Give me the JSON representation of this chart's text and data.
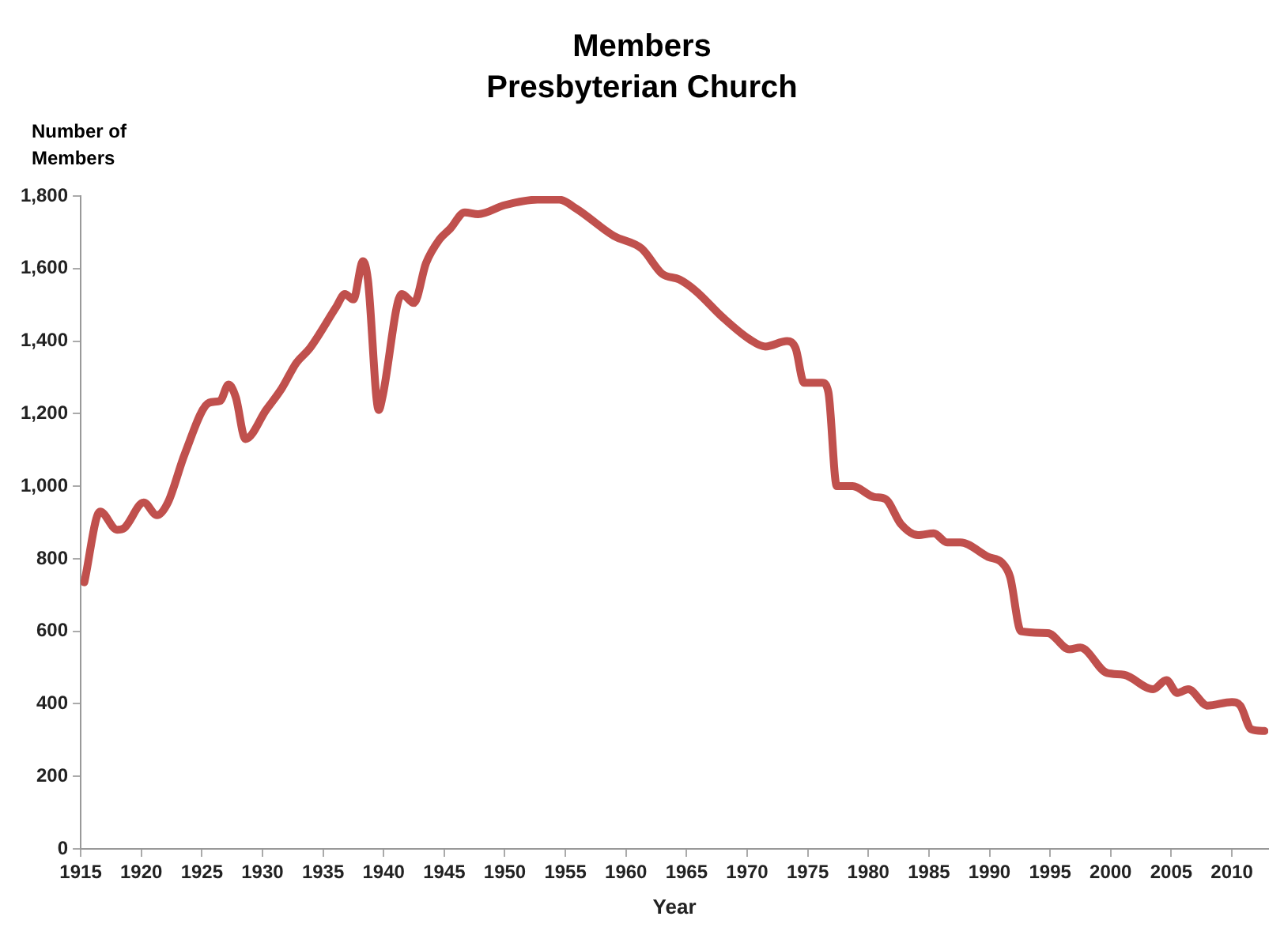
{
  "chart_data": {
    "type": "line",
    "title": "Members",
    "subtitle": "Presbyterian Church",
    "xlabel": "Year",
    "ylabel": "Number of Members",
    "x": [
      1915.3,
      1916.6,
      1918,
      1918.6,
      1920.2,
      1921.3,
      1922.2,
      1923.6,
      1925.6,
      1926.5,
      1927.2,
      1927.8,
      1928.6,
      1930.3,
      1931.6,
      1932.8,
      1933.9,
      1936.1,
      1936.8,
      1937.5,
      1938.3,
      1938.7,
      1939.6,
      1939.9,
      1941.5,
      1942.5,
      1943.5,
      1944.6,
      1945.5,
      1946.7,
      1947.8,
      1950,
      1952.7,
      1954.5,
      1955.9,
      1959,
      1961.3,
      1963,
      1964.4,
      1965.7,
      1968,
      1970.2,
      1971.5,
      1973.3,
      1974,
      1974.7,
      1976.2,
      1976.7,
      1977.4,
      1978.7,
      1980.5,
      1981.4,
      1982.7,
      1984.1,
      1985.4,
      1986.5,
      1987.6,
      1989.9,
      1991,
      1991.7,
      1992.6,
      1994.8,
      1996.6,
      1997.5,
      1999.7,
      2001.1,
      2003.5,
      2004.6,
      2005.5,
      2006.4,
      2008,
      2010,
      2010.7,
      2011.6,
      2012.7
    ],
    "series": [
      {
        "color": "#c0504d",
        "values": [
          735,
          930,
          880,
          885,
          955,
          920,
          955,
          1090,
          1230,
          1235,
          1280,
          1245,
          1130,
          1210,
          1270,
          1340,
          1380,
          1495,
          1530,
          1515,
          1620,
          1570,
          1210,
          1245,
          1530,
          1505,
          1615,
          1680,
          1710,
          1755,
          1750,
          1775,
          1790,
          1790,
          1765,
          1690,
          1655,
          1585,
          1570,
          1540,
          1465,
          1405,
          1385,
          1400,
          1380,
          1285,
          1285,
          1260,
          1000,
          1000,
          970,
          965,
          895,
          865,
          870,
          845,
          845,
          805,
          790,
          750,
          600,
          595,
          550,
          555,
          485,
          480,
          440,
          465,
          430,
          440,
          395,
          405,
          395,
          330,
          325
        ]
      }
    ],
    "xlim": [
      1915,
      2013
    ],
    "xticks": [
      1915,
      1920,
      1925,
      1930,
      1935,
      1940,
      1945,
      1950,
      1955,
      1960,
      1965,
      1970,
      1975,
      1980,
      1985,
      1990,
      1995,
      2000,
      2005,
      2010
    ],
    "ylim": [
      0,
      1800
    ],
    "yticks": [
      0,
      200,
      400,
      600,
      800,
      {
        "value": 1000,
        "label": "1,000"
      },
      {
        "value": 1200,
        "label": "1,200"
      },
      {
        "value": 1400,
        "label": "1,400"
      },
      {
        "value": 1600,
        "label": "1,600"
      },
      {
        "value": 1800,
        "label": "1,800"
      }
    ],
    "grid": false,
    "marker": "none",
    "line_style": "solid"
  }
}
